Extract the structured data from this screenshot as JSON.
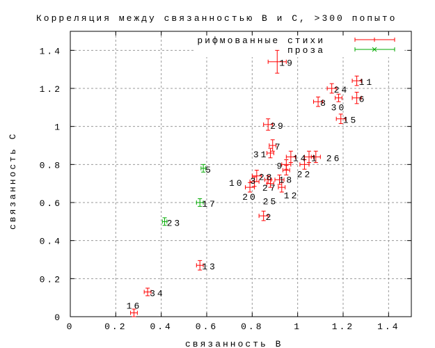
{
  "chart_data": {
    "type": "scatter",
    "title": "Корреляция между связанностью B и C, >300 попыто",
    "xlabel": "связанность B",
    "ylabel": "связанность C",
    "xlim": [
      0,
      1.5
    ],
    "ylim": [
      0,
      1.5
    ],
    "xticks": [
      "0",
      "0.2",
      "0.4",
      "0.6",
      "0.8",
      "1",
      "1.2",
      "1.4"
    ],
    "yticks": [
      "0",
      "0.2",
      "0.4",
      "0.6",
      "0.8",
      "1",
      "1.2",
      "1.4"
    ],
    "grid": true,
    "legend_position": "top-right",
    "series": [
      {
        "name": "рифмованные стихи",
        "color": "#ff0000",
        "points": [
          {
            "label": "19",
            "x": 0.91,
            "y": 1.34,
            "xerr": 0.04,
            "yerr": 0.06
          },
          {
            "label": "11",
            "x": 1.26,
            "y": 1.24,
            "xerr": 0.02,
            "yerr": 0.025
          },
          {
            "label": "24",
            "x": 1.15,
            "y": 1.2,
            "xerr": 0.02,
            "yerr": 0.025
          },
          {
            "label": "30",
            "x": 1.18,
            "y": 1.15,
            "xerr": 0.015,
            "yerr": 0.02
          },
          {
            "label": "6",
            "x": 1.26,
            "y": 1.15,
            "xerr": 0.02,
            "yerr": 0.03
          },
          {
            "label": "8",
            "x": 1.09,
            "y": 1.13,
            "xerr": 0.02,
            "yerr": 0.025
          },
          {
            "label": "15",
            "x": 1.19,
            "y": 1.04,
            "xerr": 0.02,
            "yerr": 0.025
          },
          {
            "label": "29",
            "x": 0.87,
            "y": 1.01,
            "xerr": 0.02,
            "yerr": 0.03
          },
          {
            "label": "7",
            "x": 0.89,
            "y": 0.9,
            "xerr": 0.015,
            "yerr": 0.03
          },
          {
            "label": "31",
            "x": 0.88,
            "y": 0.86,
            "xerr": 0.015,
            "yerr": 0.025
          },
          {
            "label": "14",
            "x": 0.97,
            "y": 0.84,
            "xerr": 0.02,
            "yerr": 0.03
          },
          {
            "label": "1",
            "x": 1.05,
            "y": 0.84,
            "xerr": 0.02,
            "yerr": 0.03
          },
          {
            "label": "26",
            "x": 1.08,
            "y": 0.84,
            "xerr": 0.02,
            "yerr": 0.03
          },
          {
            "label": "9",
            "x": 0.95,
            "y": 0.8,
            "xerr": 0.02,
            "yerr": 0.025
          },
          {
            "label": "22",
            "x": 1.03,
            "y": 0.8,
            "xerr": 0.02,
            "yerr": 0.025
          },
          {
            "label": "18",
            "x": 0.95,
            "y": 0.77,
            "xerr": 0.015,
            "yerr": 0.025
          },
          {
            "label": "28",
            "x": 0.82,
            "y": 0.74,
            "xerr": 0.02,
            "yerr": 0.03
          },
          {
            "label": "27",
            "x": 0.92,
            "y": 0.72,
            "xerr": 0.02,
            "yerr": 0.025
          },
          {
            "label": "3",
            "x": 0.87,
            "y": 0.72,
            "xerr": 0.015,
            "yerr": 0.02
          },
          {
            "label": "10",
            "x": 0.81,
            "y": 0.71,
            "xerr": 0.02,
            "yerr": 0.025
          },
          {
            "label": "25",
            "x": 0.88,
            "y": 0.7,
            "xerr": 0.015,
            "yerr": 0.02
          },
          {
            "label": "20",
            "x": 0.79,
            "y": 0.68,
            "xerr": 0.02,
            "yerr": 0.025
          },
          {
            "label": "12",
            "x": 0.93,
            "y": 0.68,
            "xerr": 0.015,
            "yerr": 0.025
          },
          {
            "label": "2",
            "x": 0.85,
            "y": 0.53,
            "xerr": 0.02,
            "yerr": 0.025
          },
          {
            "label": "13",
            "x": 0.57,
            "y": 0.27,
            "xerr": 0.015,
            "yerr": 0.025
          },
          {
            "label": "34",
            "x": 0.34,
            "y": 0.13,
            "xerr": 0.015,
            "yerr": 0.02
          },
          {
            "label": "16",
            "x": 0.28,
            "y": 0.02,
            "xerr": 0.015,
            "yerr": 0.02
          }
        ]
      },
      {
        "name": "проза",
        "color": "#00aa00",
        "points": [
          {
            "label": "5",
            "x": 0.585,
            "y": 0.78,
            "xerr": 0.01,
            "yerr": 0.02
          },
          {
            "label": "17",
            "x": 0.57,
            "y": 0.6,
            "xerr": 0.015,
            "yerr": 0.02
          },
          {
            "label": "23",
            "x": 0.415,
            "y": 0.5,
            "xerr": 0.01,
            "yerr": 0.02
          }
        ]
      }
    ]
  }
}
